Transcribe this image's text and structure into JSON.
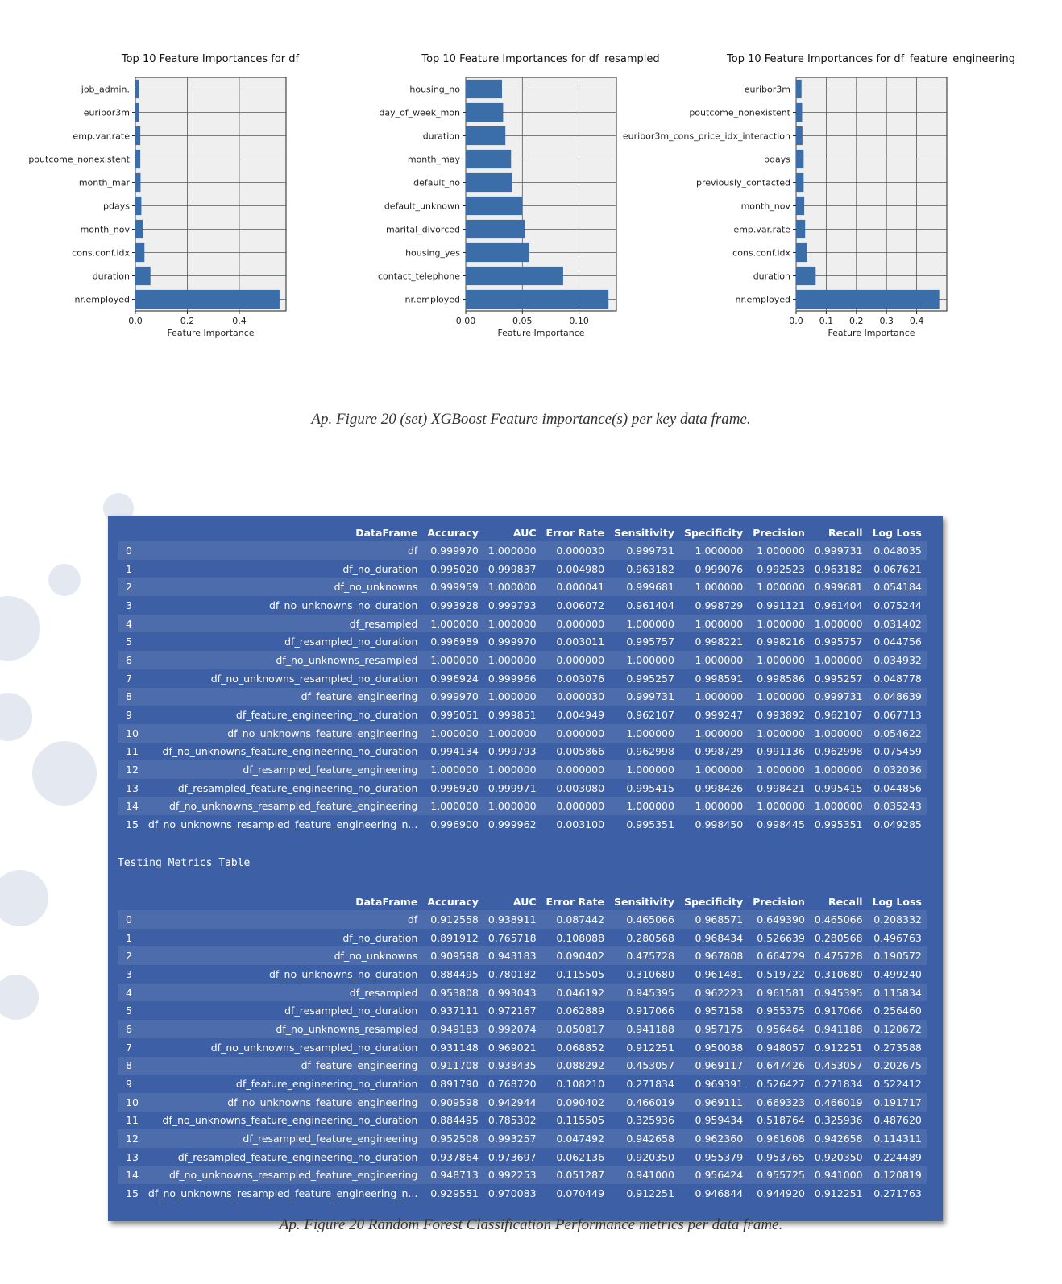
{
  "figure_caption_1": "Ap. Figure 20 (set) XGBoost Feature importance(s) per key data frame.",
  "figure_caption_2": "Ap. Figure 20 Random Forest Classification Performance metrics per data frame.",
  "colors": {
    "bar": "#3b6ea8",
    "plot_bg": "#efefef",
    "table_bg": "#3d5fa5"
  },
  "chart_data": [
    {
      "type": "bar",
      "orientation": "horizontal",
      "title": "Top 10 Feature Importances for df",
      "xlabel": "Feature Importance",
      "ylabel": "",
      "xlim": [
        0,
        0.58
      ],
      "xticks": [
        "0.0",
        "0.2",
        "0.4"
      ],
      "xtick_values": [
        0,
        0.2,
        0.4
      ],
      "grid": true,
      "categories": [
        "job_admin.",
        "euribor3m",
        "emp.var.rate",
        "poutcome_nonexistent",
        "month_mar",
        "pdays",
        "month_nov",
        "cons.conf.idx",
        "duration",
        "nr.employed"
      ],
      "values": [
        0.014,
        0.014,
        0.019,
        0.019,
        0.02,
        0.023,
        0.028,
        0.035,
        0.058,
        0.555
      ]
    },
    {
      "type": "bar",
      "orientation": "horizontal",
      "title": "Top 10 Feature Importances for df_resampled",
      "xlabel": "Feature Importance",
      "ylabel": "",
      "xlim": [
        0,
        0.133
      ],
      "xticks": [
        "0.00",
        "0.05",
        "0.10"
      ],
      "xtick_values": [
        0,
        0.05,
        0.1
      ],
      "grid": true,
      "categories": [
        "housing_no",
        "day_of_week_mon",
        "duration",
        "month_may",
        "default_no",
        "default_unknown",
        "marital_divorced",
        "housing_yes",
        "contact_telephone",
        "nr.employed"
      ],
      "values": [
        0.032,
        0.033,
        0.035,
        0.04,
        0.041,
        0.05,
        0.052,
        0.056,
        0.086,
        0.126
      ]
    },
    {
      "type": "bar",
      "orientation": "horizontal",
      "title": "Top 10 Feature Importances for df_feature_engineering",
      "xlabel": "Feature Importance",
      "ylabel": "",
      "xlim": [
        0,
        0.5
      ],
      "xticks": [
        "0.0",
        "0.1",
        "0.2",
        "0.3",
        "0.4"
      ],
      "xtick_values": [
        0,
        0.1,
        0.2,
        0.3,
        0.4
      ],
      "grid": true,
      "categories": [
        "euribor3m",
        "poutcome_nonexistent",
        "euribor3m_cons_price_idx_interaction",
        "pdays",
        "previously_contacted",
        "month_nov",
        "emp.var.rate",
        "cons.conf.idx",
        "duration",
        "nr.employed"
      ],
      "values": [
        0.018,
        0.02,
        0.021,
        0.025,
        0.025,
        0.027,
        0.03,
        0.036,
        0.065,
        0.475
      ]
    }
  ],
  "training_table": {
    "headers": [
      "",
      "DataFrame",
      "Accuracy",
      "AUC",
      "Error Rate",
      "Sensitivity",
      "Specificity",
      "Precision",
      "Recall",
      "Log Loss"
    ],
    "rows": [
      [
        "0",
        "df",
        "0.999970",
        "1.000000",
        "0.000030",
        "0.999731",
        "1.000000",
        "1.000000",
        "0.999731",
        "0.048035"
      ],
      [
        "1",
        "df_no_duration",
        "0.995020",
        "0.999837",
        "0.004980",
        "0.963182",
        "0.999076",
        "0.992523",
        "0.963182",
        "0.067621"
      ],
      [
        "2",
        "df_no_unknowns",
        "0.999959",
        "1.000000",
        "0.000041",
        "0.999681",
        "1.000000",
        "1.000000",
        "0.999681",
        "0.054184"
      ],
      [
        "3",
        "df_no_unknowns_no_duration",
        "0.993928",
        "0.999793",
        "0.006072",
        "0.961404",
        "0.998729",
        "0.991121",
        "0.961404",
        "0.075244"
      ],
      [
        "4",
        "df_resampled",
        "1.000000",
        "1.000000",
        "0.000000",
        "1.000000",
        "1.000000",
        "1.000000",
        "1.000000",
        "0.031402"
      ],
      [
        "5",
        "df_resampled_no_duration",
        "0.996989",
        "0.999970",
        "0.003011",
        "0.995757",
        "0.998221",
        "0.998216",
        "0.995757",
        "0.044756"
      ],
      [
        "6",
        "df_no_unknowns_resampled",
        "1.000000",
        "1.000000",
        "0.000000",
        "1.000000",
        "1.000000",
        "1.000000",
        "1.000000",
        "0.034932"
      ],
      [
        "7",
        "df_no_unknowns_resampled_no_duration",
        "0.996924",
        "0.999966",
        "0.003076",
        "0.995257",
        "0.998591",
        "0.998586",
        "0.995257",
        "0.048778"
      ],
      [
        "8",
        "df_feature_engineering",
        "0.999970",
        "1.000000",
        "0.000030",
        "0.999731",
        "1.000000",
        "1.000000",
        "0.999731",
        "0.048639"
      ],
      [
        "9",
        "df_feature_engineering_no_duration",
        "0.995051",
        "0.999851",
        "0.004949",
        "0.962107",
        "0.999247",
        "0.993892",
        "0.962107",
        "0.067713"
      ],
      [
        "10",
        "df_no_unknowns_feature_engineering",
        "1.000000",
        "1.000000",
        "0.000000",
        "1.000000",
        "1.000000",
        "1.000000",
        "1.000000",
        "0.054622"
      ],
      [
        "11",
        "df_no_unknowns_feature_engineering_no_duration",
        "0.994134",
        "0.999793",
        "0.005866",
        "0.962998",
        "0.998729",
        "0.991136",
        "0.962998",
        "0.075459"
      ],
      [
        "12",
        "df_resampled_feature_engineering",
        "1.000000",
        "1.000000",
        "0.000000",
        "1.000000",
        "1.000000",
        "1.000000",
        "1.000000",
        "0.032036"
      ],
      [
        "13",
        "df_resampled_feature_engineering_no_duration",
        "0.996920",
        "0.999971",
        "0.003080",
        "0.995415",
        "0.998426",
        "0.998421",
        "0.995415",
        "0.044856"
      ],
      [
        "14",
        "df_no_unknowns_resampled_feature_engineering",
        "1.000000",
        "1.000000",
        "0.000000",
        "1.000000",
        "1.000000",
        "1.000000",
        "1.000000",
        "0.035243"
      ],
      [
        "15",
        "df_no_unknowns_resampled_feature_engineering_n...",
        "0.996900",
        "0.999962",
        "0.003100",
        "0.995351",
        "0.998450",
        "0.998445",
        "0.995351",
        "0.049285"
      ]
    ]
  },
  "testing_label": "Testing Metrics Table",
  "testing_table": {
    "headers": [
      "",
      "DataFrame",
      "Accuracy",
      "AUC",
      "Error Rate",
      "Sensitivity",
      "Specificity",
      "Precision",
      "Recall",
      "Log Loss"
    ],
    "rows": [
      [
        "0",
        "df",
        "0.912558",
        "0.938911",
        "0.087442",
        "0.465066",
        "0.968571",
        "0.649390",
        "0.465066",
        "0.208332"
      ],
      [
        "1",
        "df_no_duration",
        "0.891912",
        "0.765718",
        "0.108088",
        "0.280568",
        "0.968434",
        "0.526639",
        "0.280568",
        "0.496763"
      ],
      [
        "2",
        "df_no_unknowns",
        "0.909598",
        "0.943183",
        "0.090402",
        "0.475728",
        "0.967808",
        "0.664729",
        "0.475728",
        "0.190572"
      ],
      [
        "3",
        "df_no_unknowns_no_duration",
        "0.884495",
        "0.780182",
        "0.115505",
        "0.310680",
        "0.961481",
        "0.519722",
        "0.310680",
        "0.499240"
      ],
      [
        "4",
        "df_resampled",
        "0.953808",
        "0.993043",
        "0.046192",
        "0.945395",
        "0.962223",
        "0.961581",
        "0.945395",
        "0.115834"
      ],
      [
        "5",
        "df_resampled_no_duration",
        "0.937111",
        "0.972167",
        "0.062889",
        "0.917066",
        "0.957158",
        "0.955375",
        "0.917066",
        "0.256460"
      ],
      [
        "6",
        "df_no_unknowns_resampled",
        "0.949183",
        "0.992074",
        "0.050817",
        "0.941188",
        "0.957175",
        "0.956464",
        "0.941188",
        "0.120672"
      ],
      [
        "7",
        "df_no_unknowns_resampled_no_duration",
        "0.931148",
        "0.969021",
        "0.068852",
        "0.912251",
        "0.950038",
        "0.948057",
        "0.912251",
        "0.273588"
      ],
      [
        "8",
        "df_feature_engineering",
        "0.911708",
        "0.938435",
        "0.088292",
        "0.453057",
        "0.969117",
        "0.647426",
        "0.453057",
        "0.202675"
      ],
      [
        "9",
        "df_feature_engineering_no_duration",
        "0.891790",
        "0.768720",
        "0.108210",
        "0.271834",
        "0.969391",
        "0.526427",
        "0.271834",
        "0.522412"
      ],
      [
        "10",
        "df_no_unknowns_feature_engineering",
        "0.909598",
        "0.942944",
        "0.090402",
        "0.466019",
        "0.969111",
        "0.669323",
        "0.466019",
        "0.191717"
      ],
      [
        "11",
        "df_no_unknowns_feature_engineering_no_duration",
        "0.884495",
        "0.785302",
        "0.115505",
        "0.325936",
        "0.959434",
        "0.518764",
        "0.325936",
        "0.487620"
      ],
      [
        "12",
        "df_resampled_feature_engineering",
        "0.952508",
        "0.993257",
        "0.047492",
        "0.942658",
        "0.962360",
        "0.961608",
        "0.942658",
        "0.114311"
      ],
      [
        "13",
        "df_resampled_feature_engineering_no_duration",
        "0.937864",
        "0.973697",
        "0.062136",
        "0.920350",
        "0.955379",
        "0.953765",
        "0.920350",
        "0.224489"
      ],
      [
        "14",
        "df_no_unknowns_resampled_feature_engineering",
        "0.948713",
        "0.992253",
        "0.051287",
        "0.941000",
        "0.956424",
        "0.955725",
        "0.941000",
        "0.120819"
      ],
      [
        "15",
        "df_no_unknowns_resampled_feature_engineering_n...",
        "0.929551",
        "0.970083",
        "0.070449",
        "0.912251",
        "0.946844",
        "0.944920",
        "0.912251",
        "0.271763"
      ]
    ]
  }
}
